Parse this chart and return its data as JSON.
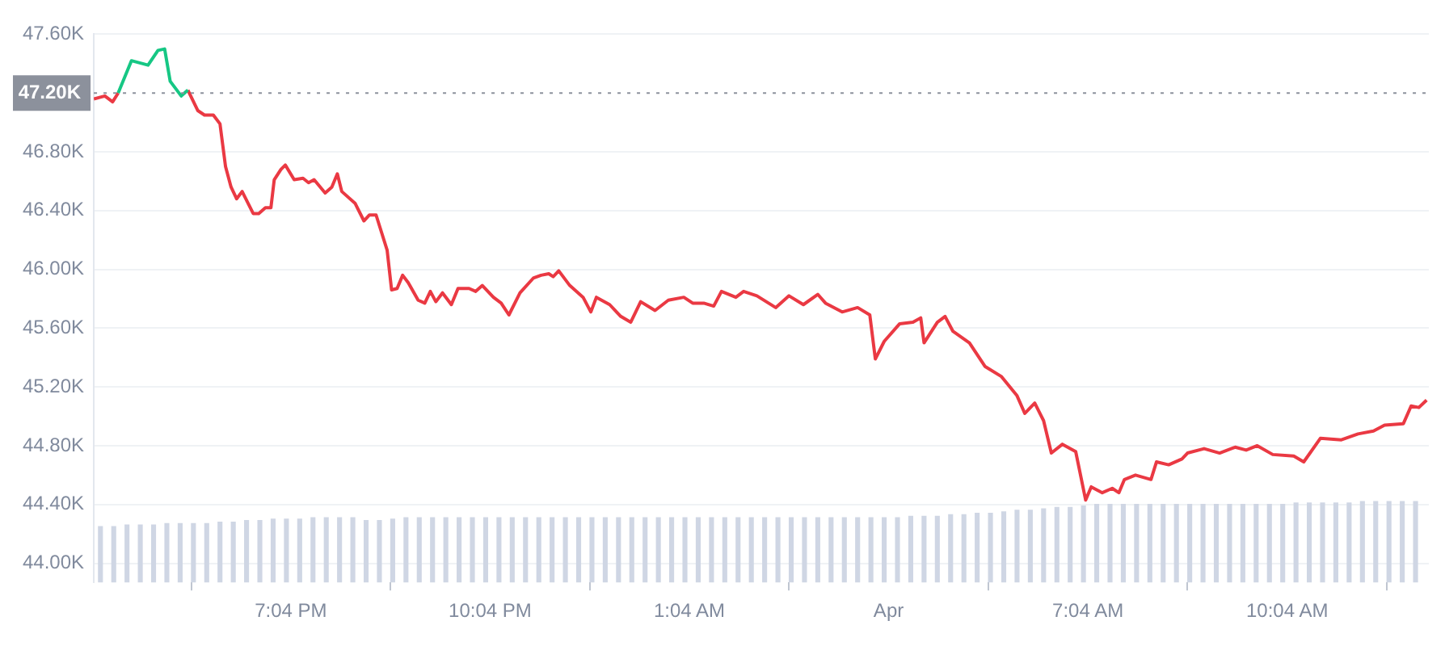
{
  "chart_data": {
    "type": "line",
    "xlim": [
      "--03-31T16:06",
      "--04-01T12:12"
    ],
    "ylim": [
      43.87,
      47.6
    ],
    "xticks": [
      {
        "value": "--03-31T19:04",
        "label": "7:04 PM"
      },
      {
        "value": "--03-31T22:04",
        "label": "10:04 PM"
      },
      {
        "value": "--04-01T01:04",
        "label": "1:04 AM"
      },
      {
        "value": "--04-01T04:04",
        "label": "Apr"
      },
      {
        "value": "--04-01T07:04",
        "label": "7:04 AM"
      },
      {
        "value": "--04-01T10:04",
        "label": "10:04 AM"
      }
    ],
    "yticks": [
      {
        "value": 44.0,
        "label": "44.00K"
      },
      {
        "value": 44.4,
        "label": "44.40K"
      },
      {
        "value": 44.8,
        "label": "44.80K"
      },
      {
        "value": 45.2,
        "label": "45.20K"
      },
      {
        "value": 45.6,
        "label": "45.60K"
      },
      {
        "value": 46.0,
        "label": "46.00K"
      },
      {
        "value": 46.4,
        "label": "46.40K"
      },
      {
        "value": 46.8,
        "label": "46.80K"
      },
      {
        "value": 47.6,
        "label": "47.60K"
      }
    ],
    "grid": "y",
    "legend": false,
    "ref_lines": [
      {
        "axis": "y",
        "value": 47.2,
        "label": "47.20K",
        "color": "#8c919c",
        "line_style": "dotted"
      }
    ],
    "series": [
      {
        "type": "bar",
        "color": "#cfd6e4",
        "x": [
          "--03-31T16:12",
          "--03-31T16:24",
          "--03-31T16:36",
          "--03-31T16:48",
          "--03-31T17:00",
          "--03-31T17:12",
          "--03-31T17:24",
          "--03-31T17:36",
          "--03-31T17:48",
          "--03-31T18:00",
          "--03-31T18:12",
          "--03-31T18:24",
          "--03-31T18:36",
          "--03-31T18:48",
          "--03-31T19:00",
          "--03-31T19:12",
          "--03-31T19:24",
          "--03-31T19:36",
          "--03-31T19:48",
          "--03-31T20:00",
          "--03-31T20:12",
          "--03-31T20:24",
          "--03-31T20:36",
          "--03-31T20:48",
          "--03-31T21:00",
          "--03-31T21:12",
          "--03-31T21:24",
          "--03-31T21:36",
          "--03-31T21:48",
          "--03-31T22:00",
          "--03-31T22:12",
          "--03-31T22:24",
          "--03-31T22:36",
          "--03-31T22:48",
          "--03-31T23:00",
          "--03-31T23:12",
          "--03-31T23:24",
          "--03-31T23:36",
          "--03-31T23:48",
          "--04-01T00:00",
          "--04-01T00:12",
          "--04-01T00:24",
          "--04-01T00:36",
          "--04-01T00:48",
          "--04-01T01:00",
          "--04-01T01:12",
          "--04-01T01:24",
          "--04-01T01:36",
          "--04-01T01:48",
          "--04-01T02:00",
          "--04-01T02:12",
          "--04-01T02:24",
          "--04-01T02:36",
          "--04-01T02:48",
          "--04-01T03:00",
          "--04-01T03:12",
          "--04-01T03:24",
          "--04-01T03:36",
          "--04-01T03:48",
          "--04-01T04:00",
          "--04-01T04:12",
          "--04-01T04:24",
          "--04-01T04:36",
          "--04-01T04:48",
          "--04-01T05:00",
          "--04-01T05:12",
          "--04-01T05:24",
          "--04-01T05:36",
          "--04-01T05:48",
          "--04-01T06:00",
          "--04-01T06:12",
          "--04-01T06:24",
          "--04-01T06:36",
          "--04-01T06:48",
          "--04-01T07:00",
          "--04-01T07:12",
          "--04-01T07:24",
          "--04-01T07:36",
          "--04-01T07:48",
          "--04-01T08:00",
          "--04-01T08:12",
          "--04-01T08:24",
          "--04-01T08:36",
          "--04-01T08:48",
          "--04-01T09:00",
          "--04-01T09:12",
          "--04-01T09:24",
          "--04-01T09:36",
          "--04-01T09:48",
          "--04-01T10:00",
          "--04-01T10:12",
          "--04-01T10:24",
          "--04-01T10:36",
          "--04-01T10:48",
          "--04-01T11:00",
          "--04-01T11:12",
          "--04-01T11:24",
          "--04-01T11:36",
          "--04-01T11:48",
          "--04-01T12:00"
        ],
        "values": [
          44.25,
          44.25,
          44.26,
          44.26,
          44.26,
          44.27,
          44.27,
          44.27,
          44.27,
          44.28,
          44.28,
          44.29,
          44.29,
          44.3,
          44.3,
          44.3,
          44.31,
          44.31,
          44.31,
          44.31,
          44.29,
          44.29,
          44.3,
          44.31,
          44.31,
          44.31,
          44.31,
          44.31,
          44.31,
          44.31,
          44.31,
          44.31,
          44.31,
          44.31,
          44.31,
          44.31,
          44.31,
          44.31,
          44.31,
          44.31,
          44.31,
          44.31,
          44.31,
          44.31,
          44.31,
          44.31,
          44.31,
          44.31,
          44.31,
          44.31,
          44.31,
          44.31,
          44.31,
          44.31,
          44.31,
          44.31,
          44.31,
          44.31,
          44.31,
          44.31,
          44.31,
          44.32,
          44.32,
          44.32,
          44.33,
          44.33,
          44.34,
          44.34,
          44.35,
          44.36,
          44.36,
          44.37,
          44.38,
          44.38,
          44.39,
          44.4,
          44.4,
          44.4,
          44.4,
          44.4,
          44.4,
          44.4,
          44.4,
          44.4,
          44.4,
          44.4,
          44.4,
          44.4,
          44.4,
          44.4,
          44.41,
          44.41,
          44.41,
          44.41,
          44.41,
          44.42,
          44.42,
          44.42,
          44.42,
          44.42
        ]
      },
      {
        "color": "#eb3a44",
        "x": [
          "--03-31T16:06",
          "--03-31T16:07",
          "--03-31T16:16",
          "--03-31T16:23",
          "--03-31T16:28"
        ],
        "values": [
          47.16,
          47.16,
          47.18,
          47.14,
          47.2
        ]
      },
      {
        "color": "#16c784",
        "x": [
          "--03-31T16:28",
          "--03-31T16:40",
          "--03-31T16:55",
          "--03-31T17:04",
          "--03-31T17:10",
          "--03-31T17:15",
          "--03-31T17:25",
          "--03-31T17:31"
        ],
        "values": [
          47.2,
          47.42,
          47.39,
          47.49,
          47.5,
          47.28,
          47.18,
          47.22
        ]
      },
      {
        "color": "#ea3943",
        "x": [
          "--03-31T17:31",
          "--03-31T17:40",
          "--03-31T17:46",
          "--03-31T17:54",
          "--03-31T18:00",
          "--03-31T18:05",
          "--03-31T18:10",
          "--03-31T18:15",
          "--03-31T18:20",
          "--03-31T18:30",
          "--03-31T18:35",
          "--03-31T18:41",
          "--03-31T18:46",
          "--03-31T18:49",
          "--03-31T18:55",
          "--03-31T18:59",
          "--03-31T19:07",
          "--03-31T19:15",
          "--03-31T19:20",
          "--03-31T19:25",
          "--03-31T19:35",
          "--03-31T19:41",
          "--03-31T19:46",
          "--03-31T19:50",
          "--03-31T20:02",
          "--03-31T20:10",
          "--03-31T20:15",
          "--03-31T20:21",
          "--03-31T20:31",
          "--03-31T20:35",
          "--03-31T20:40",
          "--03-31T20:45",
          "--03-31T20:50",
          "--03-31T20:59",
          "--03-31T21:05",
          "--03-31T21:10",
          "--03-31T21:15",
          "--03-31T21:21",
          "--03-31T21:29",
          "--03-31T21:35",
          "--03-31T21:45",
          "--03-31T21:51",
          "--03-31T21:57",
          "--03-31T22:07",
          "--03-31T22:14",
          "--03-31T22:21",
          "--03-31T22:31",
          "--03-31T22:43",
          "--03-31T22:50",
          "--03-31T22:57",
          "--03-31T23:01",
          "--03-31T23:06",
          "--03-31T23:16",
          "--03-31T23:28",
          "--03-31T23:35",
          "--03-31T23:40",
          "--03-31T23:52",
          "--04-01T00:02",
          "--04-01T00:11",
          "--04-01T00:20",
          "--04-01T00:33",
          "--04-01T00:45",
          "--04-01T00:59",
          "--04-01T01:07",
          "--04-01T01:17",
          "--04-01T01:26",
          "--04-01T01:33",
          "--04-01T01:46",
          "--04-01T01:53",
          "--04-01T02:05",
          "--04-01T02:22",
          "--04-01T02:34",
          "--04-01T02:47",
          "--04-01T03:00",
          "--04-01T03:07",
          "--04-01T03:22",
          "--04-01T03:36",
          "--04-01T03:47",
          "--04-01T03:52",
          "--04-01T04:00",
          "--04-01T04:14",
          "--04-01T04:26",
          "--04-01T04:33",
          "--04-01T04:36",
          "--04-01T04:48",
          "--04-01T04:55",
          "--04-01T05:02",
          "--04-01T05:17",
          "--04-01T05:31",
          "--04-01T05:46",
          "--04-01T06:00",
          "--04-01T06:07",
          "--04-01T06:16",
          "--04-01T06:24",
          "--04-01T06:31",
          "--04-01T06:41",
          "--04-01T06:53",
          "--04-01T07:02",
          "--04-01T07:07",
          "--04-01T07:17",
          "--04-01T07:26",
          "--04-01T07:32",
          "--04-01T07:37",
          "--04-01T07:47",
          "--04-01T08:01",
          "--04-01T08:06",
          "--04-01T08:17",
          "--04-01T08:29",
          "--04-01T08:34",
          "--04-01T08:49",
          "--04-01T09:03",
          "--04-01T09:17",
          "--04-01T09:27",
          "--04-01T09:37",
          "--04-01T09:51",
          "--04-01T10:10",
          "--04-01T10:19",
          "--04-01T10:34",
          "--04-01T10:53",
          "--04-01T11:08",
          "--04-01T11:22",
          "--04-01T11:32",
          "--04-01T11:49",
          "--04-01T11:56",
          "--04-01T12:03",
          "--04-01T12:10"
        ],
        "values": [
          47.22,
          47.08,
          47.05,
          47.05,
          46.99,
          46.7,
          46.56,
          46.48,
          46.53,
          46.38,
          46.38,
          46.42,
          46.42,
          46.61,
          46.68,
          46.71,
          46.61,
          46.62,
          46.59,
          46.61,
          46.52,
          46.56,
          46.65,
          46.53,
          46.45,
          46.33,
          46.37,
          46.37,
          46.13,
          45.86,
          45.87,
          45.96,
          45.91,
          45.79,
          45.77,
          45.85,
          45.78,
          45.84,
          45.76,
          45.87,
          45.87,
          45.85,
          45.89,
          45.81,
          45.77,
          45.69,
          45.84,
          45.94,
          45.96,
          45.97,
          45.95,
          45.99,
          45.89,
          45.81,
          45.71,
          45.81,
          45.76,
          45.68,
          45.64,
          45.78,
          45.72,
          45.79,
          45.81,
          45.77,
          45.77,
          45.75,
          45.85,
          45.81,
          45.85,
          45.82,
          45.74,
          45.82,
          45.76,
          45.83,
          45.77,
          45.71,
          45.74,
          45.69,
          45.39,
          45.51,
          45.63,
          45.64,
          45.67,
          45.5,
          45.64,
          45.68,
          45.58,
          45.5,
          45.34,
          45.27,
          45.14,
          45.02,
          45.09,
          44.97,
          44.75,
          44.81,
          44.76,
          44.43,
          44.52,
          44.48,
          44.51,
          44.48,
          44.57,
          44.6,
          44.57,
          44.69,
          44.67,
          44.71,
          44.75,
          44.78,
          44.75,
          44.79,
          44.77,
          44.8,
          44.74,
          44.73,
          44.69,
          44.85,
          44.84,
          44.88,
          44.9,
          44.94,
          44.95,
          45.07,
          45.06,
          45.11
        ]
      }
    ]
  }
}
